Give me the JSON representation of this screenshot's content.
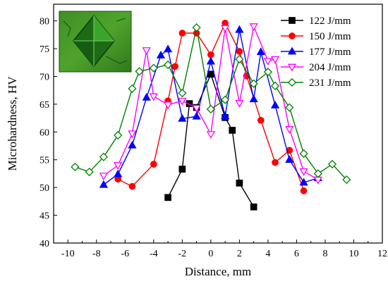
{
  "chart_data": {
    "type": "line",
    "xlabel": "Distance, mm",
    "ylabel": "Microhardness, HV",
    "xlim": [
      -11,
      12
    ],
    "ylim": [
      40,
      83
    ],
    "xticks": [
      -10,
      -8,
      -6,
      -4,
      -2,
      0,
      2,
      4,
      6,
      8,
      10,
      12
    ],
    "yticks": [
      40,
      45,
      50,
      55,
      60,
      65,
      70,
      75,
      80
    ],
    "legend_position": "top-right",
    "inset": "green micrograph of indentation (top-left)",
    "series": [
      {
        "name": "122 J/mm",
        "color": "#000000",
        "marker": "square",
        "x": [
          -3,
          -2,
          -1.5,
          -1,
          0,
          1,
          1.5,
          2,
          3
        ],
        "y": [
          48.2,
          53.3,
          65.1,
          64.4,
          70.4,
          62.6,
          60.3,
          50.8,
          46.5
        ]
      },
      {
        "name": "150 J/mm",
        "color": "#ff0000",
        "marker": "circle",
        "x": [
          -6.5,
          -5.5,
          -4,
          -3,
          -2.5,
          -2,
          -1,
          0,
          1,
          2,
          2.5,
          3.5,
          4.5,
          5.5,
          6.5
        ],
        "y": [
          51.5,
          50.2,
          54.2,
          65.6,
          71.8,
          77.8,
          77.8,
          73.9,
          79.6,
          74.5,
          70.1,
          62.1,
          54.5,
          56.7,
          49.4
        ]
      },
      {
        "name": "177 J/mm",
        "color": "#0000ff",
        "marker": "triangle-up",
        "x": [
          -7.5,
          -6.5,
          -5.5,
          -4.5,
          -3.5,
          -3,
          -2,
          -1,
          0,
          1,
          2,
          3,
          3.5,
          4.5,
          5.5,
          6.5,
          7.5
        ],
        "y": [
          50.5,
          52.4,
          57.6,
          66.2,
          73.8,
          74.9,
          62.4,
          62.8,
          72.7,
          62.9,
          78.4,
          65.9,
          74.4,
          64.8,
          55.0,
          50.9,
          51.7
        ]
      },
      {
        "name": "204 J/mm",
        "color": "#ff00ff",
        "marker": "triangle-down",
        "x": [
          -7.5,
          -6.5,
          -5.5,
          -4.5,
          -4,
          -3,
          -2,
          -1,
          0,
          1,
          2,
          3,
          4,
          4.5,
          5.5,
          6.5,
          7.5
        ],
        "y": [
          52.1,
          54.0,
          59.7,
          74.7,
          66.4,
          64.9,
          65.6,
          64.3,
          59.6,
          78.7,
          65.2,
          79.0,
          72.8,
          73.1,
          60.5,
          52.9,
          51.4
        ]
      },
      {
        "name": "231 J/mm",
        "color": "#008000",
        "marker": "diamond",
        "x": [
          -9.5,
          -8.5,
          -7.5,
          -6.5,
          -5.5,
          -5,
          -4,
          -3,
          -2,
          -1,
          0,
          1,
          2,
          3,
          4,
          4.5,
          5.5,
          6.5,
          7.5,
          8.5,
          9.5
        ],
        "y": [
          53.7,
          52.8,
          55.5,
          59.4,
          67.8,
          70.9,
          71.5,
          72.1,
          67.0,
          78.8,
          64.1,
          65.8,
          73.1,
          68.7,
          70.8,
          68.3,
          64.4,
          56.1,
          52.5,
          54.2,
          51.4
        ]
      }
    ]
  }
}
